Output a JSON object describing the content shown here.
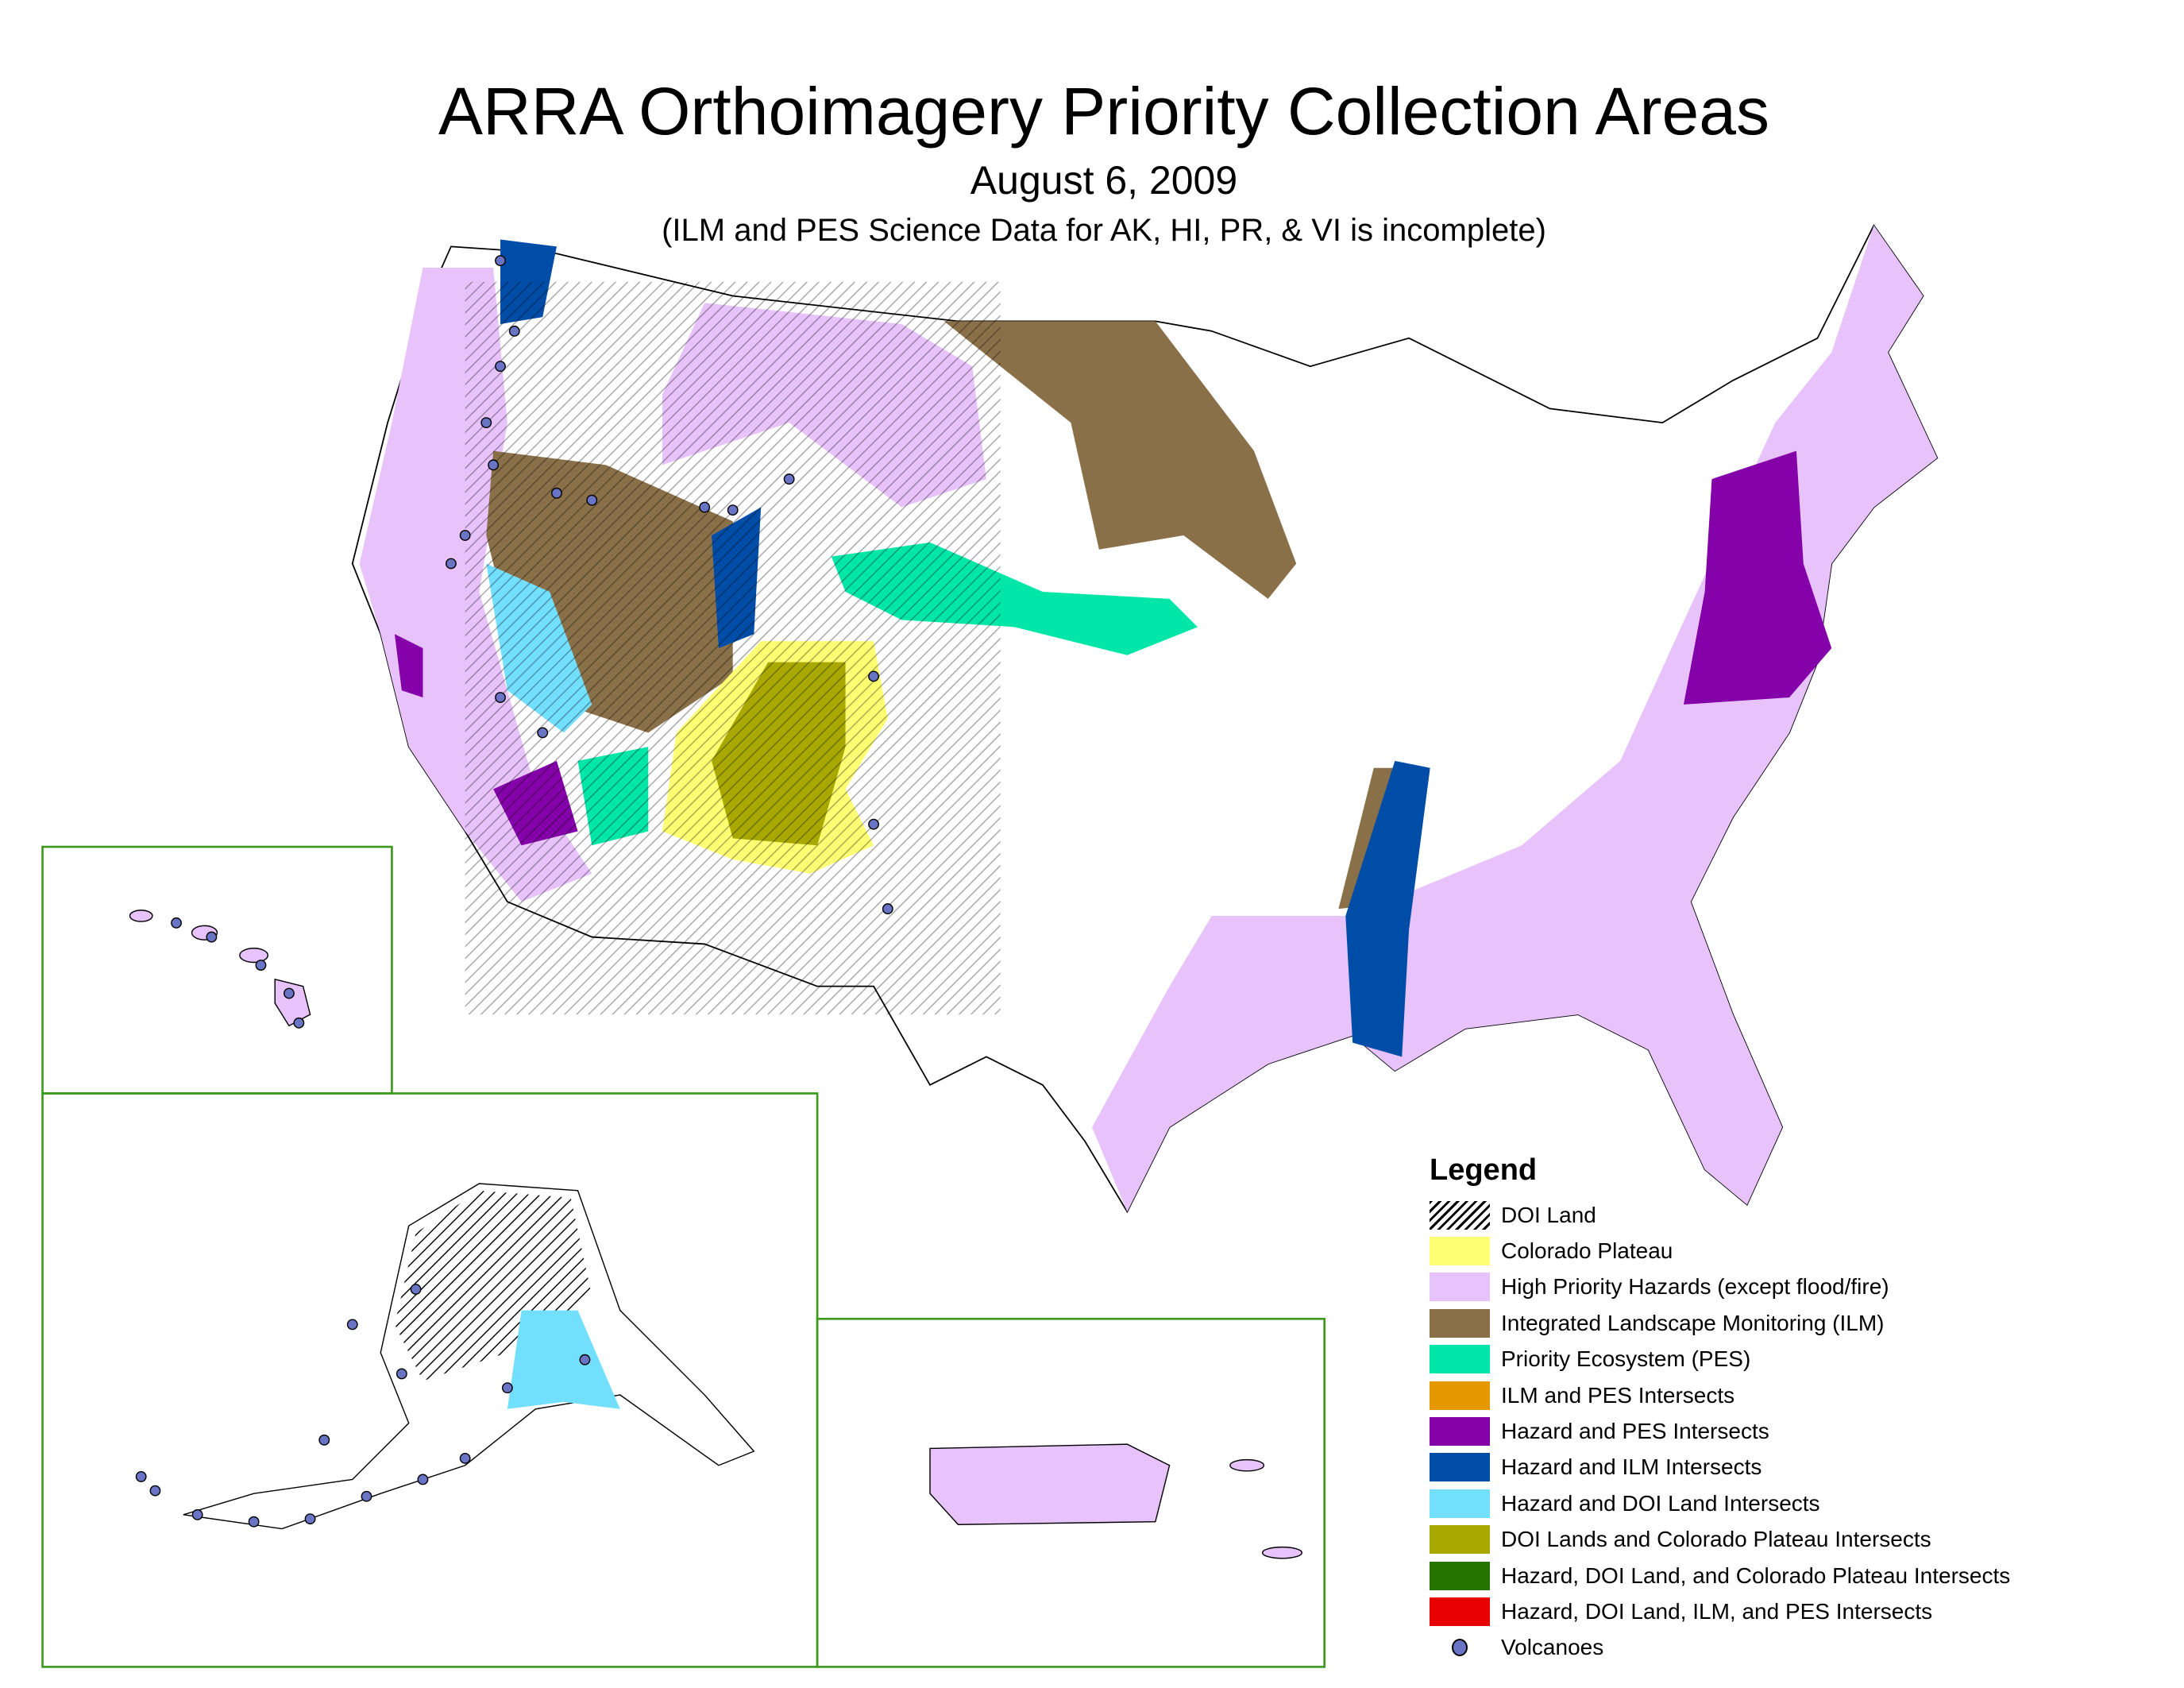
{
  "title": "ARRA Orthoimagery Priority Collection Areas",
  "date": "August 6, 2009",
  "note": "(ILM and PES Science Data for AK, HI, PR, & VI is incomplete)",
  "insets": [
    "Hawaii",
    "Alaska",
    "Puerto Rico and Virgin Islands"
  ],
  "inset_frame_color": "#3c9a1e",
  "legend": {
    "title": "Legend",
    "items": [
      {
        "label": "DOI Land",
        "swatch": "hatch",
        "color": "#000000"
      },
      {
        "label": "Colorado Plateau",
        "color": "#ffff73"
      },
      {
        "label": "High Priority Hazards (except flood/fire)",
        "color": "#e8c2fa"
      },
      {
        "label": "Integrated Landscape Monitoring (ILM)",
        "color": "#8a7048"
      },
      {
        "label": "Priority Ecosystem (PES)",
        "color": "#00e6a9"
      },
      {
        "label": "ILM and PES Intersects",
        "color": "#e69800"
      },
      {
        "label": "Hazard and PES Intersects",
        "color": "#8400a8"
      },
      {
        "label": "Hazard and ILM Intersects",
        "color": "#004da8"
      },
      {
        "label": "Hazard and DOI Land Intersects",
        "color": "#73dfff"
      },
      {
        "label": "DOI Lands and Colorado Plateau Intersects",
        "color": "#a8a800"
      },
      {
        "label": "Hazard, DOI Land, and Colorado Plateau Intersects",
        "color": "#267300"
      },
      {
        "label": "Hazard, DOI Land, ILM, and PES Intersects",
        "color": "#e60000"
      },
      {
        "label": "Volcanoes",
        "swatch": "point",
        "color": "#6a74c4"
      }
    ]
  }
}
